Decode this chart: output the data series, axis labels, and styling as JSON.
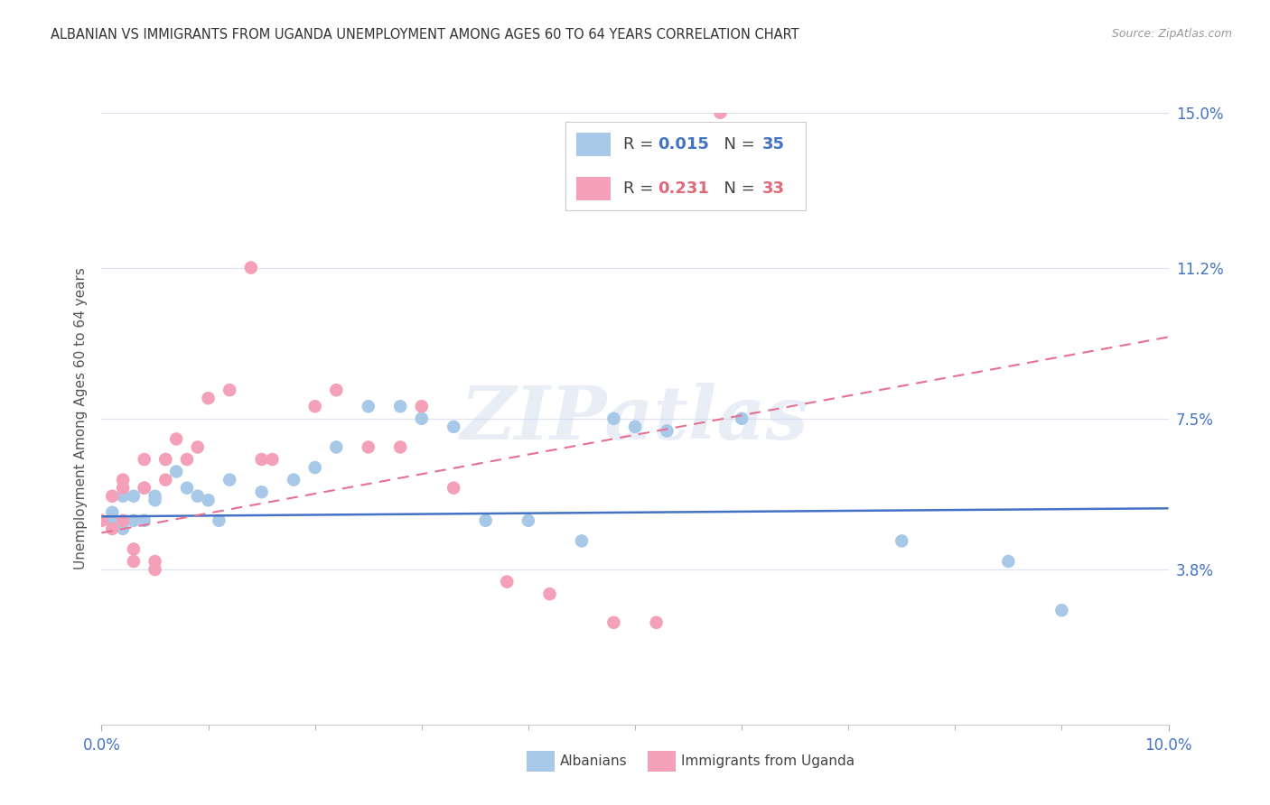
{
  "title": "ALBANIAN VS IMMIGRANTS FROM UGANDA UNEMPLOYMENT AMONG AGES 60 TO 64 YEARS CORRELATION CHART",
  "source": "Source: ZipAtlas.com",
  "ylabel": "Unemployment Among Ages 60 to 64 years",
  "xlim": [
    0.0,
    0.1
  ],
  "ylim": [
    0.0,
    0.15
  ],
  "ytick_values": [
    0.038,
    0.075,
    0.112,
    0.15
  ],
  "ytick_labels": [
    "3.8%",
    "7.5%",
    "11.2%",
    "15.0%"
  ],
  "watermark": "ZIPatlas",
  "legend_albanians_R": "0.015",
  "legend_albanians_N": "35",
  "legend_uganda_R": "0.231",
  "legend_uganda_N": "33",
  "color_albanians": "#a8c8e8",
  "color_uganda": "#f4a0b8",
  "color_line_albanians": "#4472c4",
  "color_line_uganda": "#e87090",
  "background_color": "#ffffff",
  "grid_color": "#dde4f0",
  "albanians_x": [
    0.001,
    0.001,
    0.002,
    0.002,
    0.003,
    0.003,
    0.004,
    0.004,
    0.005,
    0.005,
    0.006,
    0.007,
    0.008,
    0.009,
    0.01,
    0.011,
    0.012,
    0.015,
    0.018,
    0.02,
    0.022,
    0.025,
    0.028,
    0.03,
    0.033,
    0.036,
    0.04,
    0.045,
    0.048,
    0.05,
    0.053,
    0.06,
    0.075,
    0.085,
    0.09
  ],
  "albanians_y": [
    0.05,
    0.052,
    0.048,
    0.056,
    0.05,
    0.056,
    0.05,
    0.058,
    0.055,
    0.056,
    0.065,
    0.062,
    0.058,
    0.056,
    0.055,
    0.05,
    0.06,
    0.057,
    0.06,
    0.063,
    0.068,
    0.078,
    0.078,
    0.075,
    0.073,
    0.05,
    0.05,
    0.045,
    0.075,
    0.073,
    0.072,
    0.075,
    0.045,
    0.04,
    0.028
  ],
  "uganda_x": [
    0.0,
    0.001,
    0.001,
    0.002,
    0.002,
    0.002,
    0.003,
    0.003,
    0.004,
    0.004,
    0.005,
    0.005,
    0.006,
    0.006,
    0.007,
    0.008,
    0.009,
    0.01,
    0.012,
    0.014,
    0.015,
    0.016,
    0.02,
    0.022,
    0.025,
    0.028,
    0.03,
    0.033,
    0.038,
    0.042,
    0.048,
    0.052,
    0.058
  ],
  "uganda_y": [
    0.05,
    0.048,
    0.056,
    0.058,
    0.05,
    0.06,
    0.04,
    0.043,
    0.058,
    0.065,
    0.038,
    0.04,
    0.06,
    0.065,
    0.07,
    0.065,
    0.068,
    0.08,
    0.082,
    0.112,
    0.065,
    0.065,
    0.078,
    0.082,
    0.068,
    0.068,
    0.078,
    0.058,
    0.035,
    0.032,
    0.025,
    0.025,
    0.15
  ],
  "alb_line_x": [
    0.0,
    0.1
  ],
  "alb_line_y": [
    0.051,
    0.053
  ],
  "uga_line_x": [
    0.0,
    0.1
  ],
  "uga_line_y": [
    0.047,
    0.095
  ]
}
